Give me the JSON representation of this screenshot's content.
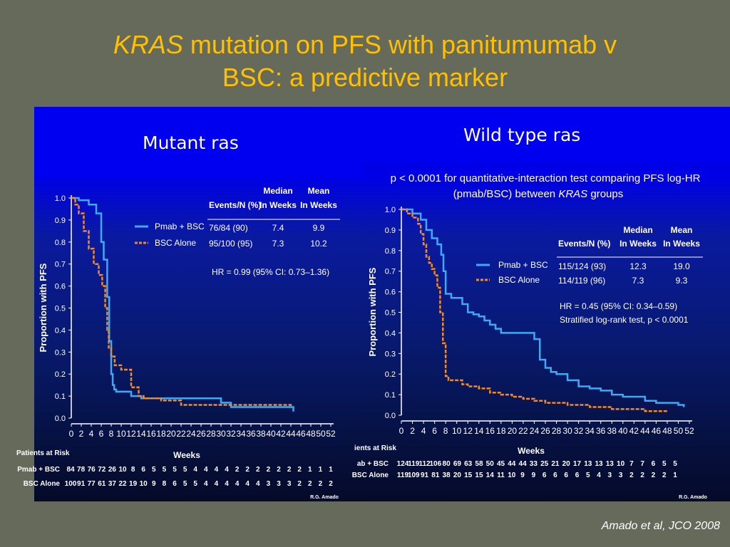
{
  "slide": {
    "title_italic": "KRAS",
    "title_rest": " mutation on PFS with panitumumab v",
    "title_line2": "BSC: a predictive marker",
    "citation": "Amado et al, JCO 2008",
    "label_left": "Mutant ras",
    "label_right": "Wild type ras"
  },
  "colors": {
    "title": "#ffc000",
    "pmab": "#3fa9f5",
    "bsc": "#f6891f",
    "background": "#666a5b"
  },
  "chart_data": [
    {
      "type": "line",
      "subtype": "kaplan-meier",
      "title": "",
      "ylabel": "Proportion with PFS",
      "xlabel": "Weeks",
      "xlim": [
        0,
        52
      ],
      "ylim": [
        0,
        1.0
      ],
      "x_ticks": [
        "0",
        "2",
        "4",
        "6",
        "8",
        "10",
        "12",
        "14",
        "16",
        "18",
        "20",
        "22",
        "24",
        "26",
        "28",
        "30",
        "32",
        "34",
        "36",
        "38",
        "40",
        "42",
        "44",
        "46",
        "48",
        "50",
        "52"
      ],
      "y_ticks": [
        "0.0",
        "0.1",
        "0.2",
        "0.3",
        "0.4",
        "0.5",
        "0.6",
        "0.7",
        "0.8",
        "0.9",
        "1.0"
      ],
      "series": [
        {
          "name": "Pmab + BSC",
          "color": "#3fa9f5",
          "x": [
            0,
            1.5,
            3.5,
            5,
            6,
            6.5,
            7.2,
            7.6,
            8.0,
            8.3,
            8.6,
            9,
            10,
            12,
            14,
            20,
            30,
            32,
            44,
            44.5
          ],
          "y": [
            1.0,
            0.99,
            0.97,
            0.93,
            0.8,
            0.72,
            0.55,
            0.35,
            0.2,
            0.15,
            0.13,
            0.12,
            0.12,
            0.1,
            0.09,
            0.09,
            0.07,
            0.05,
            0.05,
            0.03
          ]
        },
        {
          "name": "BSC Alone",
          "color": "#f6891f",
          "x": [
            0,
            0.8,
            1.5,
            2.5,
            3.5,
            4.5,
            5.5,
            6.2,
            6.8,
            7.2,
            7.5,
            8.0,
            8.7,
            10,
            12,
            13.5,
            14.5,
            18,
            20,
            22,
            30,
            44
          ],
          "y": [
            1.0,
            0.97,
            0.93,
            0.85,
            0.77,
            0.7,
            0.65,
            0.6,
            0.5,
            0.4,
            0.32,
            0.28,
            0.24,
            0.22,
            0.14,
            0.1,
            0.09,
            0.08,
            0.08,
            0.06,
            0.06,
            0.05
          ]
        }
      ],
      "legend": {
        "position": "top-right",
        "items": [
          "Pmab + BSC",
          "BSC Alone"
        ]
      },
      "table": {
        "headers": [
          "Events/N (%)",
          "Median In Weeks",
          "Mean In Weeks"
        ],
        "header_top": [
          "",
          "Median",
          "Mean"
        ],
        "header_bottom": [
          "Events/N (%)",
          "In Weeks",
          "In Weeks"
        ],
        "rows": [
          [
            "76/84 (90)",
            "7.4",
            "9.9"
          ],
          [
            "95/100 (95)",
            "7.3",
            "10.2"
          ]
        ]
      },
      "annotations": [
        "HR = 0.99 (95% CI: 0.73–1.36)"
      ],
      "at_risk": {
        "title": "Patients at Risk",
        "rows": [
          {
            "label": "Pmab + BSC",
            "values": [
              "84",
              "78",
              "76",
              "72",
              "26",
              "10",
              "8",
              "6",
              "5",
              "5",
              "5",
              "5",
              "4",
              "4",
              "4",
              "4",
              "2",
              "2",
              "2",
              "2",
              "2",
              "2",
              "2",
              "1",
              "1",
              "1"
            ]
          },
          {
            "label": "BSC Alone",
            "values": [
              "100",
              "91",
              "77",
              "61",
              "37",
              "22",
              "19",
              "10",
              "9",
              "8",
              "6",
              "5",
              "5",
              "4",
              "4",
              "4",
              "4",
              "4",
              "4",
              "3",
              "3",
              "3",
              "2",
              "2",
              "2",
              "2"
            ]
          }
        ]
      },
      "credit": "R.G. Amado"
    },
    {
      "type": "line",
      "subtype": "kaplan-meier",
      "title": "p < 0.0001 for quantitative-interaction test comparing PFS log-HR",
      "title_line2_pre": "(pmab/BSC) between ",
      "title_line2_italic": "KRAS",
      "title_line2_post": " groups",
      "ylabel": "Proportion with PFS",
      "xlabel": "Weeks",
      "xlim": [
        0,
        52
      ],
      "ylim": [
        0,
        1.0
      ],
      "x_ticks": [
        "0",
        "2",
        "4",
        "6",
        "8",
        "10",
        "12",
        "14",
        "16",
        "18",
        "20",
        "22",
        "24",
        "26",
        "28",
        "30",
        "32",
        "34",
        "36",
        "38",
        "40",
        "42",
        "44",
        "46",
        "48",
        "50",
        "52"
      ],
      "y_ticks": [
        "0.0",
        "0.1",
        "0.2",
        "0.3",
        "0.4",
        "0.5",
        "0.6",
        "0.7",
        "0.8",
        "0.9",
        "1.0"
      ],
      "series": [
        {
          "name": "Pmab + BSC",
          "color": "#3fa9f5",
          "x": [
            0,
            2,
            3.5,
            4.5,
            5.5,
            6.5,
            7.2,
            7.6,
            8.0,
            9,
            10,
            11,
            12,
            13,
            14,
            15,
            16,
            17,
            18,
            20,
            22,
            24,
            25,
            26,
            27,
            28,
            30,
            32,
            34,
            36,
            38,
            40,
            42,
            44,
            46,
            48,
            50,
            51
          ],
          "y": [
            1.0,
            0.98,
            0.95,
            0.9,
            0.86,
            0.83,
            0.78,
            0.7,
            0.59,
            0.57,
            0.57,
            0.54,
            0.5,
            0.49,
            0.48,
            0.46,
            0.44,
            0.42,
            0.4,
            0.4,
            0.4,
            0.37,
            0.27,
            0.23,
            0.21,
            0.2,
            0.17,
            0.14,
            0.13,
            0.12,
            0.1,
            0.09,
            0.09,
            0.07,
            0.06,
            0.06,
            0.05,
            0.04
          ]
        },
        {
          "name": "BSC Alone",
          "color": "#f6891f",
          "x": [
            0,
            1,
            2,
            3,
            3.5,
            4,
            4.5,
            5,
            5.5,
            6,
            6.5,
            7,
            7.5,
            8,
            8.5,
            10,
            11,
            12,
            14,
            16,
            18,
            20,
            22,
            24,
            26,
            28,
            30,
            32,
            34,
            36,
            38,
            40,
            44,
            46,
            48
          ],
          "y": [
            1.0,
            0.98,
            0.96,
            0.93,
            0.88,
            0.83,
            0.77,
            0.74,
            0.71,
            0.68,
            0.62,
            0.5,
            0.35,
            0.19,
            0.17,
            0.17,
            0.15,
            0.14,
            0.13,
            0.11,
            0.1,
            0.09,
            0.08,
            0.07,
            0.06,
            0.06,
            0.05,
            0.05,
            0.04,
            0.04,
            0.03,
            0.03,
            0.02,
            0.02,
            0.02
          ]
        }
      ],
      "legend": {
        "position": "right",
        "items": [
          "Pmab + BSC",
          "BSC Alone"
        ]
      },
      "table": {
        "headers": [
          "Events/N (%)",
          "Median In Weeks",
          "Mean In Weeks"
        ],
        "header_top": [
          "",
          "Median",
          "Mean"
        ],
        "header_bottom": [
          "Events/N (%)",
          "In Weeks",
          "In Weeks"
        ],
        "rows": [
          [
            "115/124 (93)",
            "12.3",
            "19.0"
          ],
          [
            "114/119 (96)",
            "7.3",
            "9.3"
          ]
        ]
      },
      "annotations": [
        "HR = 0.45 (95% CI: 0.34–0.59)",
        "Stratified log-rank test, p < 0.0001"
      ],
      "at_risk": {
        "title": "ients at Risk",
        "rows": [
          {
            "label": "ab + BSC",
            "values": [
              "124",
              "119",
              "112",
              "106",
              "80",
              "69",
              "63",
              "58",
              "50",
              "45",
              "44",
              "44",
              "33",
              "25",
              "21",
              "20",
              "17",
              "13",
              "13",
              "13",
              "10",
              "7",
              "7",
              "6",
              "5",
              "5"
            ]
          },
          {
            "label": "BSC Alone",
            "values": [
              "119",
              "109",
              "91",
              "81",
              "38",
              "20",
              "15",
              "15",
              "14",
              "11",
              "10",
              "9",
              "9",
              "6",
              "6",
              "6",
              "6",
              "5",
              "4",
              "3",
              "3",
              "2",
              "2",
              "2",
              "2",
              "1"
            ]
          }
        ]
      },
      "credit": "R.G. Amado"
    }
  ]
}
